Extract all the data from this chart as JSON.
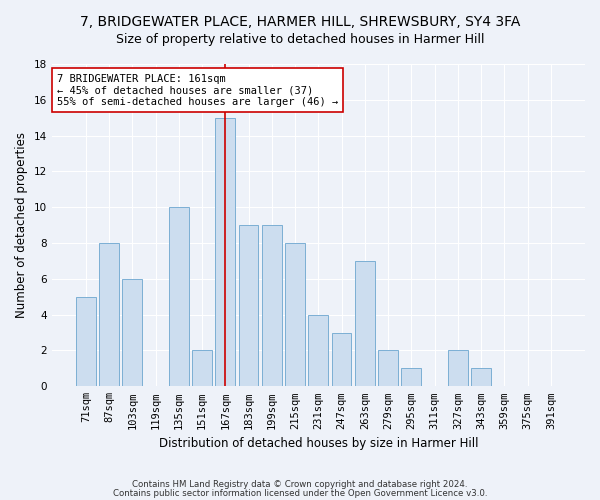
{
  "title": "7, BRIDGEWATER PLACE, HARMER HILL, SHREWSBURY, SY4 3FA",
  "subtitle": "Size of property relative to detached houses in Harmer Hill",
  "xlabel": "Distribution of detached houses by size in Harmer Hill",
  "ylabel": "Number of detached properties",
  "categories": [
    "71sqm",
    "87sqm",
    "103sqm",
    "119sqm",
    "135sqm",
    "151sqm",
    "167sqm",
    "183sqm",
    "199sqm",
    "215sqm",
    "231sqm",
    "247sqm",
    "263sqm",
    "279sqm",
    "295sqm",
    "311sqm",
    "327sqm",
    "343sqm",
    "359sqm",
    "375sqm",
    "391sqm"
  ],
  "values": [
    5,
    8,
    6,
    0,
    10,
    2,
    15,
    9,
    9,
    8,
    4,
    3,
    7,
    2,
    1,
    0,
    2,
    1,
    0,
    0,
    0
  ],
  "bar_color": "#ccddef",
  "bar_edge_color": "#7bafd4",
  "highlight_index": 6,
  "highlight_color": "#cc0000",
  "annotation_text": "7 BRIDGEWATER PLACE: 161sqm\n← 45% of detached houses are smaller (37)\n55% of semi-detached houses are larger (46) →",
  "annotation_box_color": "#ffffff",
  "annotation_box_edge": "#cc0000",
  "footnote1": "Contains HM Land Registry data © Crown copyright and database right 2024.",
  "footnote2": "Contains public sector information licensed under the Open Government Licence v3.0.",
  "ylim": [
    0,
    18
  ],
  "yticks": [
    0,
    2,
    4,
    6,
    8,
    10,
    12,
    14,
    16,
    18
  ],
  "background_color": "#eef2f9",
  "grid_color": "#ffffff",
  "title_fontsize": 10,
  "subtitle_fontsize": 9,
  "axis_label_fontsize": 8.5,
  "tick_fontsize": 7.5,
  "annotation_fontsize": 7.5
}
